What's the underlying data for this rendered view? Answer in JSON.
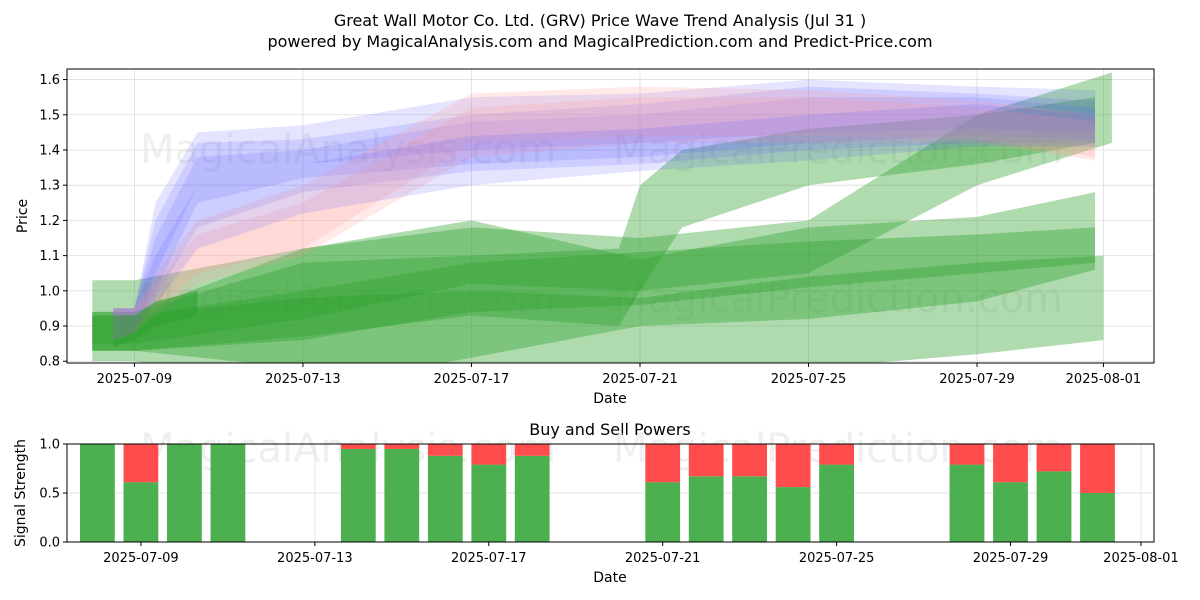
{
  "title": "Great Wall Motor Co. Ltd. (GRV) Price Wave Trend Analysis (Jul 31 )",
  "subtitle": "powered by MagicalAnalysis.com and MagicalPrediction.com and Predict-Price.com",
  "watermarks": [
    "MagicalAnalysis.com",
    "MagicalPrediction.com"
  ],
  "colors": {
    "green": "#2ca02c",
    "red": "#ff4444",
    "blue": "#5555ff",
    "pink": "#ff9999",
    "bar_green": "#4caf50",
    "bar_red": "#ff4c4c"
  },
  "chart_data": [
    {
      "type": "area",
      "title": "",
      "xlabel": "Date",
      "ylabel": "Price",
      "ylim": [
        0.795,
        1.63
      ],
      "xlim_days": [
        -1.6,
        24.2
      ],
      "x_ticks": [
        {
          "day": 0,
          "label": "2025-07-09"
        },
        {
          "day": 4,
          "label": "2025-07-13"
        },
        {
          "day": 8,
          "label": "2025-07-17"
        },
        {
          "day": 12,
          "label": "2025-07-21"
        },
        {
          "day": 16,
          "label": "2025-07-25"
        },
        {
          "day": 20,
          "label": "2025-07-29"
        },
        {
          "day": 23,
          "label": "2025-08-01"
        }
      ],
      "y_ticks": [
        {
          "v": 0.8,
          "label": "0.8"
        },
        {
          "v": 0.9,
          "label": "0.9"
        },
        {
          "v": 1.0,
          "label": "1.0"
        },
        {
          "v": 1.1,
          "label": "1.1"
        },
        {
          "v": 1.2,
          "label": "1.2"
        },
        {
          "v": 1.3,
          "label": "1.3"
        },
        {
          "v": 1.4,
          "label": "1.4"
        },
        {
          "v": 1.5,
          "label": "1.5"
        },
        {
          "v": 1.6,
          "label": "1.6"
        }
      ],
      "grid": true,
      "series": [
        {
          "name": "green-band-1",
          "color": "green",
          "opacity": 0.38,
          "x": [
            -1,
            0,
            4,
            8,
            12,
            16,
            20,
            22.8
          ],
          "upper": [
            1.03,
            1.03,
            1.12,
            1.2,
            1.09,
            1.18,
            1.21,
            1.28
          ],
          "lower": [
            0.8,
            0.8,
            0.72,
            0.81,
            0.9,
            0.92,
            0.97,
            1.06
          ]
        },
        {
          "name": "green-band-2",
          "color": "green",
          "opacity": 0.38,
          "x": [
            -1,
            0,
            4,
            8,
            12,
            16,
            20,
            22.8
          ],
          "upper": [
            0.93,
            0.93,
            1.0,
            1.08,
            1.11,
            1.14,
            1.16,
            1.18
          ],
          "lower": [
            0.83,
            0.83,
            0.86,
            0.94,
            0.96,
            1.01,
            1.05,
            1.08
          ]
        },
        {
          "name": "green-band-3",
          "color": "green",
          "opacity": 0.38,
          "x": [
            -1,
            0,
            4,
            8,
            12,
            16,
            20,
            23.2
          ],
          "upper": [
            0.94,
            0.94,
            1.12,
            1.18,
            1.15,
            1.2,
            1.5,
            1.62
          ],
          "lower": [
            0.85,
            0.85,
            0.92,
            1.02,
            1.0,
            1.05,
            1.3,
            1.42
          ]
        },
        {
          "name": "green-band-4",
          "color": "green",
          "opacity": 0.38,
          "x": [
            -1,
            0,
            4,
            8,
            11.5,
            12,
            13,
            16,
            20,
            22.8
          ],
          "upper": [
            0.94,
            0.94,
            1.08,
            1.1,
            1.12,
            1.3,
            1.4,
            1.46,
            1.5,
            1.55
          ],
          "lower": [
            0.83,
            0.83,
            0.87,
            0.93,
            0.9,
            1.0,
            1.18,
            1.3,
            1.36,
            1.42
          ]
        },
        {
          "name": "green-band-5",
          "color": "green",
          "opacity": 0.38,
          "x": [
            -1,
            0,
            4,
            8,
            12,
            16,
            20,
            23
          ],
          "upper": [
            0.93,
            0.93,
            0.98,
            1.0,
            0.98,
            1.04,
            1.08,
            1.1
          ],
          "lower": [
            0.83,
            0.83,
            0.78,
            0.76,
            0.74,
            0.78,
            0.82,
            0.86
          ]
        },
        {
          "name": "blue-band-1",
          "color": "blue",
          "opacity": 0.16,
          "x": [
            -0.5,
            0,
            0.5,
            1.5,
            4,
            8,
            12,
            16,
            20,
            22.8
          ],
          "upper": [
            0.95,
            0.95,
            1.25,
            1.45,
            1.47,
            1.55,
            1.56,
            1.6,
            1.58,
            1.57
          ],
          "lower": [
            0.86,
            0.88,
            1.05,
            1.3,
            1.36,
            1.4,
            1.42,
            1.45,
            1.46,
            1.45
          ]
        },
        {
          "name": "blue-band-2",
          "color": "blue",
          "opacity": 0.16,
          "x": [
            -0.5,
            0,
            0.5,
            1.5,
            4,
            8,
            12,
            16,
            20,
            22.8
          ],
          "upper": [
            0.95,
            0.95,
            1.2,
            1.42,
            1.43,
            1.5,
            1.53,
            1.58,
            1.56,
            1.54
          ],
          "lower": [
            0.86,
            0.88,
            1.0,
            1.25,
            1.32,
            1.36,
            1.38,
            1.42,
            1.44,
            1.43
          ]
        },
        {
          "name": "blue-band-3",
          "color": "blue",
          "opacity": 0.16,
          "x": [
            -0.5,
            0,
            0.5,
            1.5,
            4,
            8,
            12,
            16,
            20,
            22.8
          ],
          "upper": [
            0.95,
            0.95,
            1.15,
            1.38,
            1.4,
            1.48,
            1.5,
            1.55,
            1.55,
            1.52
          ],
          "lower": [
            0.86,
            0.88,
            0.98,
            1.18,
            1.28,
            1.34,
            1.36,
            1.4,
            1.42,
            1.42
          ]
        },
        {
          "name": "pink-band-1",
          "color": "pink",
          "opacity": 0.22,
          "x": [
            -0.5,
            0,
            0.5,
            1.5,
            4,
            8,
            12,
            16,
            20,
            22.8
          ],
          "upper": [
            0.95,
            0.95,
            1.05,
            1.2,
            1.3,
            1.56,
            1.58,
            1.57,
            1.54,
            1.5
          ],
          "lower": [
            0.86,
            0.88,
            0.95,
            1.05,
            1.12,
            1.42,
            1.44,
            1.44,
            1.43,
            1.38
          ]
        },
        {
          "name": "pink-band-2",
          "color": "pink",
          "opacity": 0.22,
          "x": [
            -0.5,
            0,
            0.5,
            1.5,
            4,
            8,
            12,
            16,
            20,
            22.8
          ],
          "upper": [
            0.95,
            0.95,
            1.02,
            1.16,
            1.25,
            1.52,
            1.55,
            1.55,
            1.52,
            1.48
          ],
          "lower": [
            0.86,
            0.88,
            0.93,
            1.02,
            1.1,
            1.38,
            1.42,
            1.42,
            1.42,
            1.37
          ]
        },
        {
          "name": "blue-band-4",
          "color": "blue",
          "opacity": 0.16,
          "x": [
            -0.5,
            0,
            0.5,
            1.5,
            4,
            8,
            12,
            16,
            20,
            22.8
          ],
          "upper": [
            0.95,
            0.95,
            1.1,
            1.3,
            1.36,
            1.44,
            1.46,
            1.5,
            1.53,
            1.5
          ],
          "lower": [
            0.86,
            0.88,
            0.96,
            1.12,
            1.22,
            1.3,
            1.34,
            1.37,
            1.41,
            1.41
          ]
        },
        {
          "name": "dark-green-band",
          "color": "green",
          "opacity": 0.55,
          "x": [
            -0.5,
            0,
            0.5,
            1.5
          ],
          "upper": [
            0.93,
            0.93,
            0.97,
            1.0
          ],
          "lower": [
            0.84,
            0.86,
            0.9,
            0.93
          ]
        }
      ]
    },
    {
      "type": "bar",
      "title": "Buy and Sell Powers",
      "xlabel": "Date",
      "ylabel": "Signal Strength",
      "ylim": [
        0,
        1
      ],
      "xlim_days": [
        -1.7,
        23.3
      ],
      "x_ticks": [
        {
          "day": 0,
          "label": "2025-07-09"
        },
        {
          "day": 4,
          "label": "2025-07-13"
        },
        {
          "day": 8,
          "label": "2025-07-17"
        },
        {
          "day": 12,
          "label": "2025-07-21"
        },
        {
          "day": 16,
          "label": "2025-07-25"
        },
        {
          "day": 20,
          "label": "2025-07-29"
        },
        {
          "day": 23,
          "label": "2025-08-01"
        }
      ],
      "y_ticks": [
        {
          "v": 0.0,
          "label": "0.0"
        },
        {
          "v": 0.5,
          "label": "0.5"
        },
        {
          "v": 1.0,
          "label": "1.0"
        }
      ],
      "grid": true,
      "series": [
        {
          "name": "Buy",
          "color": "bar_green"
        },
        {
          "name": "Sell",
          "color": "bar_red"
        }
      ],
      "bars": [
        {
          "day": -1,
          "buy": 1.0
        },
        {
          "day": 0,
          "buy": 0.61
        },
        {
          "day": 1,
          "buy": 1.0
        },
        {
          "day": 2,
          "buy": 1.0
        },
        {
          "day": 5,
          "buy": 0.95
        },
        {
          "day": 6,
          "buy": 0.95
        },
        {
          "day": 7,
          "buy": 0.88
        },
        {
          "day": 8,
          "buy": 0.79
        },
        {
          "day": 9,
          "buy": 0.88
        },
        {
          "day": 12,
          "buy": 0.61
        },
        {
          "day": 13,
          "buy": 0.67
        },
        {
          "day": 14,
          "buy": 0.67
        },
        {
          "day": 15,
          "buy": 0.56
        },
        {
          "day": 16,
          "buy": 0.79
        },
        {
          "day": 19,
          "buy": 0.79
        },
        {
          "day": 20,
          "buy": 0.61
        },
        {
          "day": 21,
          "buy": 0.72
        },
        {
          "day": 22,
          "buy": 0.5
        }
      ]
    }
  ]
}
